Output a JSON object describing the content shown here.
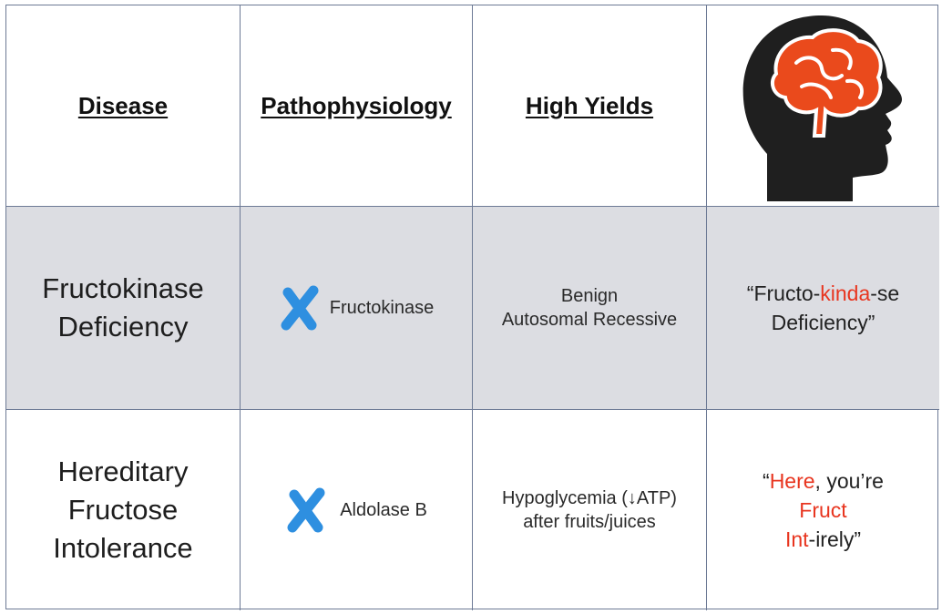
{
  "headers": {
    "disease": "Disease",
    "pathophysiology": "Pathophysiology",
    "high_yields": "High Yields"
  },
  "image_icon": "head-with-brain-icon",
  "rows": [
    {
      "disease_line1": "Fructokinase",
      "disease_line2": "Deficiency",
      "patho_icon": "blue-x-icon",
      "patho_text": "Fructokinase",
      "high_yield_line1": "Benign",
      "high_yield_line2": "Autosomal Recessive",
      "mnemonic": {
        "open": "“Fructo-",
        "highlight": "kinda",
        "after": "-se",
        "line2": "Deficiency”"
      }
    },
    {
      "disease_line1": "Hereditary",
      "disease_line2": "Fructose",
      "disease_line3": "Intolerance",
      "patho_icon": "blue-x-icon",
      "patho_text": "Aldolase B",
      "high_yield_line1_pre": "Hypoglycemia (",
      "high_yield_arrow": "↓",
      "high_yield_line1_post": "ATP)",
      "high_yield_line2": "after fruits/juices",
      "mnemonic": {
        "open": "“",
        "highlight1": "Here",
        "after1": ", you’re",
        "highlight2": "Fruct",
        "highlight3": "Int",
        "after3": "-irely”"
      }
    }
  ],
  "colors": {
    "accent_red": "#e8351f",
    "x_blue": "#2e8fe0",
    "row_shade": "#dcdde2",
    "border": "#6d7a95"
  }
}
